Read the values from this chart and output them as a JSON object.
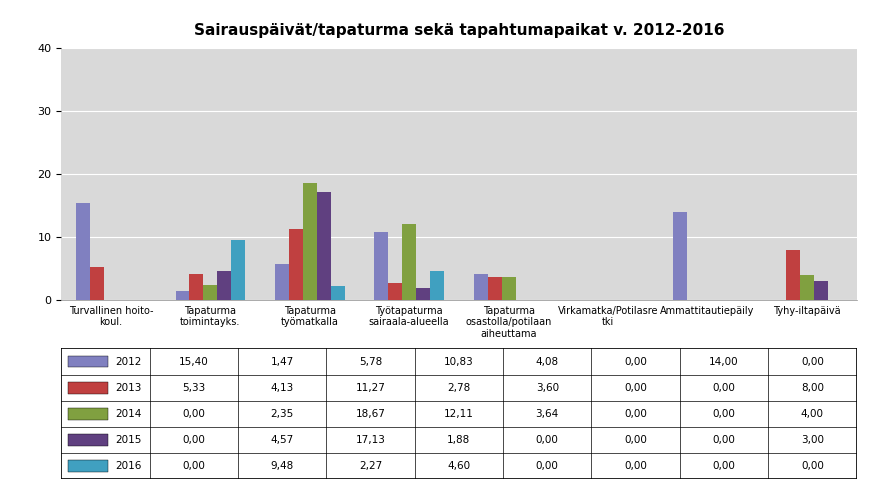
{
  "title": "Sairauspäivät/tapaturma sekä tapahtumapaikat v. 2012-2016",
  "categories": [
    "Turvallinen hoito-\nkoul.",
    "Tapaturma\ntoimintayks.",
    "Tapaturma\ntyömatkalla",
    "Työtapaturma\nsairaala-alueella",
    "Tapaturma\nosastolla/potilaan\naiheuttama",
    "Virkamatka/Potilasre\ntki",
    "Ammattitautiepäily",
    "Tyhy-iltapäivä"
  ],
  "series": {
    "2012": [
      15.4,
      1.47,
      5.78,
      10.83,
      4.08,
      0.0,
      14.0,
      0.0
    ],
    "2013": [
      5.33,
      4.13,
      11.27,
      2.78,
      3.6,
      0.0,
      0.0,
      8.0
    ],
    "2014": [
      0.0,
      2.35,
      18.67,
      12.11,
      3.64,
      0.0,
      0.0,
      4.0
    ],
    "2015": [
      0.0,
      4.57,
      17.13,
      1.88,
      0.0,
      0.0,
      0.0,
      3.0
    ],
    "2016": [
      0.0,
      9.48,
      2.27,
      4.6,
      0.0,
      0.0,
      0.0,
      0.0
    ]
  },
  "colors": {
    "2012": "#8080C0",
    "2013": "#C04040",
    "2014": "#80A040",
    "2015": "#604080",
    "2016": "#40A0C0"
  },
  "ylim": [
    0,
    40
  ],
  "yticks": [
    0,
    10,
    20,
    30,
    40
  ],
  "table_rows": [
    [
      "2012",
      "15,40",
      "1,47",
      "5,78",
      "10,83",
      "4,08",
      "0,00",
      "14,00",
      "0,00"
    ],
    [
      "2013",
      "5,33",
      "4,13",
      "11,27",
      "2,78",
      "3,60",
      "0,00",
      "0,00",
      "8,00"
    ],
    [
      "2014",
      "0,00",
      "2,35",
      "18,67",
      "12,11",
      "3,64",
      "0,00",
      "0,00",
      "4,00"
    ],
    [
      "2015",
      "0,00",
      "4,57",
      "17,13",
      "1,88",
      "0,00",
      "0,00",
      "0,00",
      "3,00"
    ],
    [
      "2016",
      "0,00",
      "9,48",
      "2,27",
      "4,60",
      "0,00",
      "0,00",
      "0,00",
      "0,00"
    ]
  ],
  "fig_bg_color": "#FFFFFF",
  "plot_bg_color": "#D9D9D9",
  "bar_width": 0.14
}
